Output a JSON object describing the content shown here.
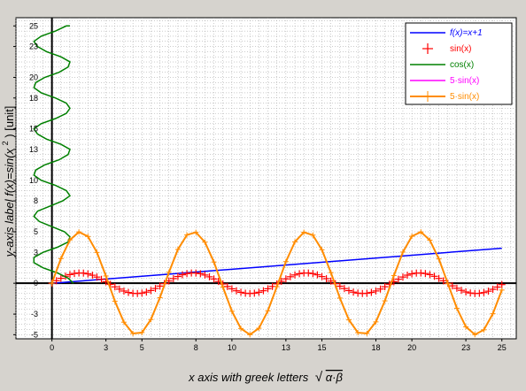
{
  "colors": {
    "background": "#d6d3ce",
    "plot_background": "#ffffff",
    "grid": "#9a9a9a",
    "axis": "#000000"
  },
  "chart_data": {
    "type": "line",
    "xlabel": "x axis with greek letters",
    "xlabel_math": "α·β",
    "ylabel": "y-axis label f(x)=sin(x",
    "ylabel_exp": "2",
    "ylabel_tail": ") [unit]",
    "xlim": [
      -2.0,
      25.8
    ],
    "ylim": [
      -5.4,
      25.8
    ],
    "x_ticks": [
      0,
      3,
      5,
      8,
      10,
      13,
      15,
      18,
      20,
      23,
      25
    ],
    "y_ticks": [
      -5,
      -3,
      0,
      3,
      5,
      8,
      10,
      13,
      15,
      18,
      20,
      23,
      25
    ],
    "grid": true,
    "legend_position": "top-right",
    "series": [
      {
        "name": "f(x)=x+1",
        "style": "line",
        "color": "#0000ff",
        "x": [
          0,
          25
        ],
        "y": [
          0,
          3.4
        ]
      },
      {
        "name": "sin(x)",
        "style": "markers",
        "marker": "cross",
        "color": "#ff0000",
        "x": [
          0.0,
          0.25,
          0.5,
          0.75,
          1.0,
          1.25,
          1.5,
          1.75,
          2.0,
          2.25,
          2.5,
          2.75,
          3.0,
          3.25,
          3.5,
          3.75,
          4.0,
          4.25,
          4.5,
          4.75,
          5.0,
          5.25,
          5.5,
          5.75,
          6.0,
          6.25,
          6.5,
          6.75,
          7.0,
          7.25,
          7.5,
          7.75,
          8.0,
          8.25,
          8.5,
          8.75,
          9.0,
          9.25,
          9.5,
          9.75,
          10.0,
          10.25,
          10.5,
          10.75,
          11.0,
          11.25,
          11.5,
          11.75,
          12.0,
          12.25,
          12.5,
          12.75,
          13.0,
          13.25,
          13.5,
          13.75,
          14.0,
          14.25,
          14.5,
          14.75,
          15.0,
          15.25,
          15.5,
          15.75,
          16.0,
          16.25,
          16.5,
          16.75,
          17.0,
          17.25,
          17.5,
          17.75,
          18.0,
          18.25,
          18.5,
          18.75,
          19.0,
          19.25,
          19.5,
          19.75,
          20.0,
          20.25,
          20.5,
          20.75,
          21.0,
          21.25,
          21.5,
          21.75,
          22.0,
          22.25,
          22.5,
          22.75,
          23.0,
          23.25,
          23.5,
          23.75,
          24.0,
          24.25,
          24.5,
          24.75,
          25.0
        ],
        "y": [
          0.0,
          0.247,
          0.479,
          0.682,
          0.841,
          0.949,
          0.997,
          0.984,
          0.909,
          0.778,
          0.598,
          0.382,
          0.141,
          -0.108,
          -0.351,
          -0.572,
          -0.757,
          -0.895,
          -0.978,
          -0.999,
          -0.959,
          -0.859,
          -0.706,
          -0.508,
          -0.279,
          -0.033,
          0.215,
          0.45,
          0.657,
          0.823,
          0.938,
          0.994,
          0.989,
          0.925,
          0.798,
          0.624,
          0.412,
          0.174,
          -0.075,
          -0.319,
          -0.544,
          -0.734,
          -0.88,
          -0.971,
          -1.0,
          -0.967,
          -0.876,
          -0.728,
          -0.537,
          -0.311,
          -0.066,
          0.182,
          0.42,
          0.631,
          0.804,
          0.927,
          0.991,
          0.993,
          0.935,
          0.818,
          0.65,
          0.44,
          0.207,
          -0.042,
          -0.288,
          -0.516,
          -0.712,
          -0.864,
          -0.961,
          -0.998,
          -0.974,
          -0.889,
          -0.751,
          -0.564,
          -0.338,
          -0.098,
          0.15,
          0.388,
          0.603,
          0.785,
          0.913,
          0.986,
          0.996,
          0.945,
          0.837,
          0.675,
          0.468,
          0.235,
          -0.009,
          -0.254,
          -0.488,
          -0.689,
          -0.846,
          -0.949,
          -0.996,
          -0.979,
          -0.906,
          -0.772,
          -0.591,
          -0.371,
          -0.132
        ]
      },
      {
        "name": "cos(x)",
        "style": "line",
        "color": "#008000",
        "x": [
          1.2,
          0.9,
          0.3,
          -0.5,
          -1.0,
          -1.0,
          -0.5,
          0.3,
          0.9,
          1.0,
          0.7,
          0.0,
          -0.7,
          -1.0,
          -0.8,
          -0.1,
          0.6,
          1.0,
          0.8,
          0.2,
          -0.6,
          -1.0,
          -0.9,
          -0.4,
          0.4,
          0.9,
          1.0,
          0.5,
          -0.3,
          -0.8,
          -1.0,
          -0.6,
          0.2,
          0.8,
          1.0,
          0.8,
          0.2,
          -0.6,
          -1.0,
          -0.9,
          -0.4,
          0.4,
          0.9,
          1.0,
          0.5,
          -0.3,
          -0.8,
          -1.0,
          -0.6,
          0.2,
          0.8,
          1.0
        ],
        "y": [
          0.0,
          0.5,
          1.0,
          1.5,
          2.0,
          2.5,
          3.0,
          3.5,
          4.0,
          4.5,
          5.0,
          5.5,
          6.0,
          6.5,
          7.0,
          7.5,
          8.0,
          8.5,
          9.0,
          9.5,
          10.0,
          10.5,
          11.0,
          11.5,
          12.0,
          12.5,
          13.0,
          13.5,
          14.0,
          14.5,
          15.0,
          15.5,
          16.0,
          16.5,
          17.0,
          17.5,
          18.0,
          18.5,
          19.0,
          19.5,
          20.0,
          20.5,
          21.0,
          21.5,
          22.0,
          22.5,
          23.0,
          23.5,
          24.0,
          24.5,
          25.0,
          25.0
        ]
      },
      {
        "name": "5·sin(x)",
        "style": "line",
        "color": "#ff00ff",
        "x": [],
        "y": []
      },
      {
        "name": "5·sin(x)",
        "style": "line-markers",
        "marker": "cross",
        "color": "#ff8c00",
        "x": [
          0.0,
          0.5,
          1.0,
          1.5,
          2.0,
          2.5,
          3.0,
          3.5,
          4.0,
          4.5,
          5.0,
          5.5,
          6.0,
          6.5,
          7.0,
          7.5,
          8.0,
          8.5,
          9.0,
          9.5,
          10.0,
          10.5,
          11.0,
          11.5,
          12.0,
          12.5,
          13.0,
          13.5,
          14.0,
          14.5,
          15.0,
          15.5,
          16.0,
          16.5,
          17.0,
          17.5,
          18.0,
          18.5,
          19.0,
          19.5,
          20.0,
          20.5,
          21.0,
          21.5,
          22.0,
          22.5,
          23.0,
          23.5,
          24.0,
          24.5,
          25.0
        ],
        "y": [
          0.0,
          2.397,
          4.207,
          4.987,
          4.546,
          2.992,
          0.706,
          -1.754,
          -3.784,
          -4.888,
          -4.795,
          -3.528,
          -1.397,
          1.075,
          3.285,
          4.69,
          4.947,
          3.992,
          2.061,
          -0.376,
          -2.72,
          -4.398,
          -5.0,
          -4.375,
          -2.683,
          -0.331,
          2.101,
          4.019,
          4.953,
          4.675,
          3.251,
          1.03,
          -1.44,
          -3.561,
          -4.807,
          -4.876,
          -3.755,
          -1.712,
          0.749,
          3.026,
          4.565,
          4.985,
          4.184,
          2.36,
          -0.044,
          -2.43,
          -4.231,
          -4.991,
          -4.528,
          -2.96,
          -0.662
        ]
      }
    ]
  }
}
